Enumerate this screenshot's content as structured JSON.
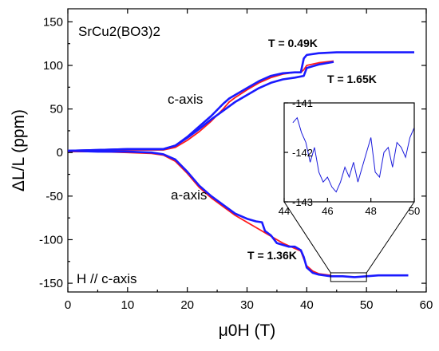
{
  "chart_data": {
    "type": "line",
    "xlabel": "μ0H (T)",
    "ylabel": "ΔL/L (ppm)",
    "xlim": [
      0,
      60
    ],
    "ylim": [
      -160,
      165
    ],
    "x_ticks": [
      0,
      10,
      20,
      30,
      40,
      50,
      60
    ],
    "y_ticks": [
      -150,
      -100,
      -50,
      0,
      50,
      100,
      150
    ],
    "x_ticklabels": [
      "0",
      "10",
      "20",
      "30",
      "40",
      "50",
      "60"
    ],
    "y_ticklabels": [
      "-150",
      "-100",
      "-50",
      "0",
      "50",
      "100",
      "150"
    ],
    "colors": {
      "blue": "#1a1aff",
      "red": "#ff1a1a"
    },
    "annotations": {
      "compound": "SrCu2(BO3)2",
      "field_dir": "H // c-axis",
      "c_axis_label": "c-axis",
      "a_axis_label": "a-axis",
      "t1": "T = 0.49K",
      "t2": "T = 1.65K",
      "t3": "T = 1.36K"
    },
    "series": [
      {
        "color": "blue",
        "axis": "c",
        "x": [
          0,
          5,
          10,
          14,
          16,
          18,
          20,
          22,
          24,
          26,
          27,
          28,
          30,
          32,
          34,
          36,
          38,
          39,
          39.5,
          40,
          42,
          45,
          50,
          55,
          58
        ],
        "y": [
          2,
          3,
          4,
          4,
          4,
          8,
          18,
          30,
          42,
          56,
          62,
          66,
          74,
          82,
          88,
          91,
          92,
          92,
          108,
          112,
          114,
          115,
          115,
          115,
          115
        ]
      },
      {
        "color": "blue",
        "axis": "c",
        "x": [
          0,
          5,
          10,
          14,
          16,
          18,
          20,
          22,
          24,
          26,
          28,
          30,
          32,
          34,
          36,
          38,
          39.5,
          40,
          42,
          44.5
        ],
        "y": [
          2,
          3,
          4,
          4,
          4,
          8,
          17,
          27,
          38,
          48,
          58,
          66,
          74,
          80,
          84,
          86,
          88,
          97,
          101,
          104
        ]
      },
      {
        "color": "red",
        "axis": "c",
        "x": [
          0,
          5,
          10,
          14,
          16,
          18,
          20,
          22,
          24,
          26,
          27,
          28,
          30,
          32,
          34,
          36,
          38,
          39,
          39.5,
          40,
          42,
          44.5
        ],
        "y": [
          1,
          2,
          3,
          3,
          3,
          6,
          14,
          24,
          36,
          50,
          58,
          63,
          72,
          80,
          86,
          90,
          92,
          92,
          95,
          100,
          103,
          105
        ]
      },
      {
        "color": "blue",
        "axis": "a",
        "x": [
          0,
          5,
          10,
          14,
          16,
          18,
          20,
          22,
          24,
          26,
          28,
          30,
          31.5,
          32.5,
          33,
          34,
          35,
          36,
          37,
          38,
          39,
          39.5,
          40,
          41,
          42,
          44,
          46,
          48,
          50,
          52,
          55,
          57
        ],
        "y": [
          2,
          1,
          1,
          0,
          -2,
          -8,
          -22,
          -38,
          -50,
          -60,
          -70,
          -76,
          -79,
          -80,
          -90,
          -95,
          -104,
          -106,
          -108,
          -108,
          -112,
          -120,
          -132,
          -138,
          -140,
          -142,
          -142,
          -143,
          -142,
          -141,
          -141,
          -141
        ]
      },
      {
        "color": "red",
        "axis": "a",
        "x": [
          0,
          5,
          10,
          14,
          16,
          18,
          20,
          22,
          24,
          26,
          28,
          30,
          32,
          34,
          36,
          38,
          39,
          39.5,
          40,
          41,
          42,
          44
        ],
        "y": [
          1,
          1,
          0,
          -1,
          -3,
          -10,
          -24,
          -40,
          -52,
          -62,
          -72,
          -80,
          -88,
          -96,
          -104,
          -110,
          -113,
          -122,
          -130,
          -136,
          -139,
          -141
        ]
      }
    ],
    "inset": {
      "xlim": [
        44,
        50
      ],
      "ylim": [
        -143,
        -141
      ],
      "x_ticks": [
        44,
        46,
        48,
        50
      ],
      "y_ticks": [
        -141,
        -142,
        -143
      ],
      "x_ticklabels": [
        "44",
        "46",
        "48",
        "50"
      ],
      "y_ticklabels": [
        "-141",
        "-142",
        "-143"
      ],
      "x": [
        44.4,
        44.6,
        44.8,
        45.0,
        45.2,
        45.4,
        45.6,
        45.8,
        46.0,
        46.2,
        46.4,
        46.6,
        46.8,
        47.0,
        47.2,
        47.4,
        47.6,
        47.8,
        48.0,
        48.2,
        48.4,
        48.6,
        48.8,
        49.0,
        49.2,
        49.4,
        49.6,
        49.8,
        50.0
      ],
      "y": [
        -141.4,
        -141.3,
        -141.6,
        -141.8,
        -142.2,
        -141.9,
        -142.4,
        -142.6,
        -142.5,
        -142.7,
        -142.8,
        -142.6,
        -142.3,
        -142.5,
        -142.2,
        -142.6,
        -142.3,
        -142.0,
        -141.7,
        -142.4,
        -142.5,
        -142.0,
        -141.9,
        -142.3,
        -141.8,
        -141.9,
        -142.1,
        -141.7,
        -141.5
      ]
    }
  }
}
